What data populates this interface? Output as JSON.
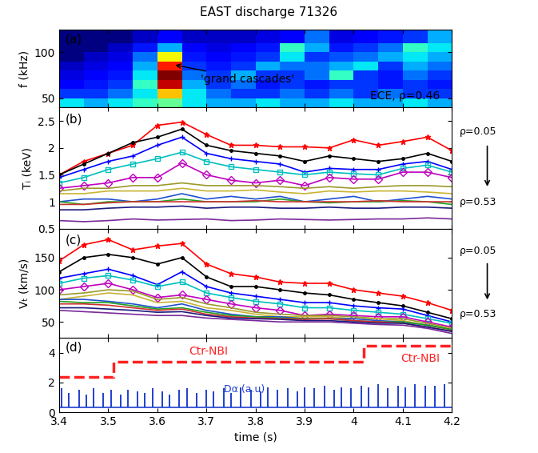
{
  "chart_data": [
    {
      "type": "heatmap",
      "title": "EAST discharge 71326",
      "panel_label": "(a)",
      "y_label": "f (kHz)",
      "arrow_note": "'grand cascades'",
      "note": "ECE, ρ=0.46",
      "x_edges": [
        3.4,
        3.45,
        3.5,
        3.55,
        3.6,
        3.65,
        3.7,
        3.75,
        3.8,
        3.85,
        3.9,
        3.95,
        4.0,
        4.05,
        4.1,
        4.15,
        4.2
      ],
      "y_edges": [
        40,
        50,
        60,
        70,
        80,
        90,
        100,
        110,
        125
      ],
      "cells": [
        [
          0.62,
          0.6,
          0.62,
          0.64,
          0.66,
          0.62,
          0.6,
          0.6,
          0.62,
          0.6,
          0.6,
          0.62,
          0.6,
          0.6,
          0.62,
          0.6
        ],
        [
          0.56,
          0.56,
          0.58,
          0.62,
          0.74,
          0.62,
          0.58,
          0.56,
          0.56,
          0.58,
          0.56,
          0.58,
          0.56,
          0.58,
          0.56,
          0.56
        ],
        [
          0.54,
          0.55,
          0.56,
          0.64,
          0.82,
          0.6,
          0.56,
          0.58,
          0.55,
          0.56,
          0.55,
          0.56,
          0.56,
          0.55,
          0.56,
          0.55
        ],
        [
          0.53,
          0.54,
          0.55,
          0.62,
          0.84,
          0.58,
          0.56,
          0.6,
          0.56,
          0.56,
          0.58,
          0.64,
          0.56,
          0.55,
          0.58,
          0.56
        ],
        [
          0.52,
          0.53,
          0.54,
          0.6,
          0.8,
          0.56,
          0.55,
          0.56,
          0.6,
          0.58,
          0.58,
          0.6,
          0.62,
          0.56,
          0.6,
          0.58
        ],
        [
          0.5,
          0.52,
          0.53,
          0.58,
          0.72,
          0.55,
          0.54,
          0.55,
          0.56,
          0.62,
          0.56,
          0.57,
          0.58,
          0.6,
          0.62,
          0.6
        ],
        [
          0.5,
          0.5,
          0.52,
          0.55,
          0.6,
          0.54,
          0.53,
          0.54,
          0.55,
          0.64,
          0.6,
          0.55,
          0.56,
          0.58,
          0.64,
          0.62
        ],
        [
          0.5,
          0.5,
          0.5,
          0.52,
          0.54,
          0.52,
          0.52,
          0.52,
          0.53,
          0.54,
          0.58,
          0.53,
          0.54,
          0.55,
          0.56,
          0.6
        ]
      ],
      "xlim": [
        3.4,
        4.2
      ],
      "xticks": [
        3.4,
        3.5,
        3.6,
        3.7,
        3.8,
        3.9,
        4,
        4.1,
        4.2
      ],
      "ylim": [
        40,
        125
      ],
      "yticks": [
        50,
        100
      ],
      "tick_labels": "y"
    },
    {
      "type": "line",
      "panel_label": "(b)",
      "y_label": "Tᵢ (keV)",
      "top_note": "ρ=0.05",
      "bottom_note": "ρ=0.53",
      "x": [
        3.4,
        3.45,
        3.5,
        3.55,
        3.6,
        3.65,
        3.7,
        3.75,
        3.8,
        3.85,
        3.9,
        3.95,
        4.0,
        4.05,
        4.1,
        4.15,
        4.2
      ],
      "series": [
        {
          "color": "#ff0000",
          "marker": "star",
          "values": [
            1.5,
            1.75,
            1.9,
            2.05,
            2.42,
            2.48,
            2.25,
            2.05,
            2.05,
            2.02,
            2.02,
            2.0,
            2.15,
            2.05,
            2.12,
            2.2,
            1.95
          ]
        },
        {
          "color": "#000000",
          "marker": "point",
          "values": [
            1.5,
            1.7,
            1.9,
            2.1,
            2.2,
            2.35,
            2.05,
            1.95,
            1.9,
            1.85,
            1.75,
            1.85,
            1.8,
            1.75,
            1.8,
            1.9,
            1.75
          ]
        },
        {
          "color": "#0000ff",
          "marker": "plus",
          "values": [
            1.45,
            1.6,
            1.75,
            1.85,
            2.05,
            2.2,
            1.9,
            1.8,
            1.75,
            1.7,
            1.55,
            1.62,
            1.6,
            1.6,
            1.7,
            1.75,
            1.6
          ]
        },
        {
          "color": "#00bfbf",
          "marker": "square",
          "values": [
            1.35,
            1.45,
            1.6,
            1.7,
            1.8,
            1.92,
            1.75,
            1.65,
            1.6,
            1.55,
            1.5,
            1.55,
            1.52,
            1.5,
            1.62,
            1.68,
            1.55
          ]
        },
        {
          "color": "#bf00bf",
          "marker": "diamond",
          "values": [
            1.25,
            1.3,
            1.35,
            1.45,
            1.45,
            1.72,
            1.5,
            1.4,
            1.35,
            1.4,
            1.3,
            1.45,
            1.42,
            1.42,
            1.55,
            1.55,
            1.45
          ]
        },
        {
          "color": "#9a9a2a",
          "values": [
            1.2,
            1.25,
            1.25,
            1.3,
            1.3,
            1.35,
            1.3,
            1.3,
            1.3,
            1.28,
            1.25,
            1.28,
            1.25,
            1.28,
            1.3,
            1.3,
            1.28
          ]
        },
        {
          "color": "#c8b432",
          "values": [
            1.15,
            1.15,
            1.2,
            1.2,
            1.2,
            1.25,
            1.2,
            1.2,
            1.22,
            1.18,
            1.15,
            1.2,
            1.18,
            1.2,
            1.2,
            1.18,
            1.15
          ]
        },
        {
          "color": "#2050d0",
          "values": [
            1.0,
            1.05,
            1.05,
            1.0,
            1.05,
            1.15,
            1.05,
            1.1,
            1.05,
            1.1,
            1.0,
            1.05,
            1.1,
            1.0,
            1.05,
            1.1,
            1.05
          ]
        },
        {
          "color": "#20a020",
          "values": [
            1.0,
            0.95,
            1.0,
            1.0,
            1.0,
            1.05,
            1.0,
            1.0,
            1.0,
            1.05,
            1.0,
            0.98,
            1.0,
            1.0,
            1.02,
            1.0,
            0.95
          ]
        },
        {
          "color": "#d03030",
          "values": [
            0.95,
            0.95,
            0.98,
            1.0,
            1.0,
            1.0,
            1.0,
            1.0,
            1.02,
            1.0,
            1.0,
            1.0,
            1.0,
            1.02,
            1.0,
            1.0,
            1.0
          ]
        },
        {
          "color": "#1a1a80",
          "values": [
            0.85,
            0.85,
            0.88,
            0.9,
            0.9,
            0.92,
            0.88,
            0.9,
            0.9,
            0.88,
            0.88,
            0.9,
            0.88,
            0.88,
            0.9,
            0.9,
            0.88
          ]
        },
        {
          "color": "#7a2a9a",
          "values": [
            0.65,
            0.63,
            0.65,
            0.68,
            0.66,
            0.67,
            0.68,
            0.65,
            0.66,
            0.68,
            0.67,
            0.66,
            0.67,
            0.68,
            0.68,
            0.7,
            0.68
          ]
        }
      ],
      "xlim": [
        3.4,
        4.2
      ],
      "xticks": [
        3.4,
        3.5,
        3.6,
        3.7,
        3.8,
        3.9,
        4,
        4.1,
        4.2
      ],
      "ylim": [
        0.5,
        2.75
      ],
      "yticks": [
        0.5,
        1,
        1.5,
        2,
        2.5
      ],
      "tick_labels": "y"
    },
    {
      "type": "line",
      "panel_label": "(c)",
      "y_label": "Vₜ (km/s)",
      "top_note": "ρ=0.05",
      "bottom_note": "ρ=0.53",
      "x": [
        3.4,
        3.45,
        3.5,
        3.55,
        3.6,
        3.65,
        3.7,
        3.75,
        3.8,
        3.85,
        3.9,
        3.95,
        4.0,
        4.05,
        4.1,
        4.15,
        4.2
      ],
      "series": [
        {
          "color": "#ff0000",
          "marker": "star",
          "values": [
            145,
            170,
            178,
            162,
            168,
            172,
            140,
            125,
            120,
            112,
            110,
            110,
            100,
            95,
            90,
            80,
            68
          ]
        },
        {
          "color": "#000000",
          "marker": "point",
          "values": [
            128,
            150,
            155,
            150,
            140,
            150,
            120,
            105,
            105,
            100,
            95,
            92,
            85,
            80,
            75,
            65,
            55
          ]
        },
        {
          "color": "#0000ff",
          "marker": "plus",
          "values": [
            118,
            125,
            132,
            122,
            108,
            128,
            105,
            95,
            90,
            85,
            80,
            80,
            75,
            72,
            70,
            60,
            50
          ]
        },
        {
          "color": "#00bfbf",
          "marker": "square",
          "values": [
            110,
            118,
            122,
            115,
            105,
            112,
            95,
            88,
            82,
            78,
            72,
            72,
            68,
            65,
            62,
            55,
            48
          ]
        },
        {
          "color": "#bf00bf",
          "marker": "diamond",
          "values": [
            100,
            105,
            110,
            100,
            88,
            92,
            85,
            78,
            72,
            68,
            60,
            62,
            60,
            58,
            58,
            50,
            42
          ]
        },
        {
          "color": "#9a9a2a",
          "values": [
            92,
            95,
            100,
            98,
            85,
            88,
            78,
            72,
            65,
            62,
            60,
            60,
            58,
            55,
            55,
            48,
            40
          ]
        },
        {
          "color": "#c8b432",
          "values": [
            85,
            90,
            95,
            92,
            80,
            82,
            72,
            68,
            62,
            58,
            58,
            58,
            55,
            55,
            52,
            45,
            40
          ]
        },
        {
          "color": "#2050d0",
          "values": [
            85,
            85,
            82,
            78,
            72,
            78,
            68,
            62,
            58,
            58,
            55,
            55,
            55,
            52,
            50,
            45,
            38
          ]
        },
        {
          "color": "#20a020",
          "values": [
            82,
            80,
            80,
            75,
            70,
            72,
            65,
            60,
            58,
            56,
            55,
            55,
            52,
            50,
            50,
            45,
            38
          ]
        },
        {
          "color": "#d03030",
          "values": [
            78,
            78,
            76,
            72,
            68,
            70,
            62,
            58,
            56,
            55,
            54,
            55,
            52,
            50,
            48,
            42,
            36
          ]
        },
        {
          "color": "#1a1a80",
          "values": [
            72,
            72,
            70,
            68,
            65,
            66,
            60,
            56,
            55,
            54,
            52,
            52,
            50,
            48,
            48,
            42,
            35
          ]
        },
        {
          "color": "#7a2a9a",
          "values": [
            68,
            66,
            64,
            62,
            60,
            60,
            56,
            54,
            52,
            50,
            50,
            50,
            48,
            46,
            45,
            40,
            32
          ]
        }
      ],
      "xlim": [
        3.4,
        4.2
      ],
      "xticks": [
        3.4,
        3.5,
        3.6,
        3.7,
        3.8,
        3.9,
        4,
        4.1,
        4.2
      ],
      "ylim": [
        25,
        195
      ],
      "yticks": [
        50,
        100,
        150
      ],
      "tick_labels": "y"
    },
    {
      "type": "line",
      "panel_label": "(d)",
      "x_label": "time (s)",
      "nbi_notes": [
        "Ctr-NBI",
        "Ctr-NBI"
      ],
      "series": [
        {
          "type": "step",
          "color": "#ff2020",
          "line_style": "dashed",
          "x": [
            3.4,
            3.51,
            3.51,
            4.02,
            4.02,
            4.2
          ],
          "values": [
            2.4,
            2.4,
            3.4,
            3.4,
            4.5,
            4.5
          ]
        },
        {
          "type": "spikes",
          "name": "Dα (a.u)",
          "color": "#1f3fd0",
          "baseline": 0.3,
          "x": [
            3.405,
            3.42,
            3.44,
            3.455,
            3.47,
            3.49,
            3.505,
            3.525,
            3.54,
            3.56,
            3.575,
            3.59,
            3.61,
            3.625,
            3.645,
            3.66,
            3.68,
            3.7,
            3.715,
            3.735,
            3.75,
            3.77,
            3.79,
            3.81,
            3.825,
            3.845,
            3.865,
            3.885,
            3.9,
            3.92,
            3.94,
            3.96,
            3.975,
            3.995,
            4.015,
            4.03,
            4.05,
            4.07,
            4.09,
            4.105,
            4.125,
            4.145,
            4.165,
            4.185
          ],
          "values": [
            1.6,
            1.3,
            1.5,
            1.2,
            1.6,
            1.3,
            1.5,
            1.2,
            1.5,
            1.4,
            1.3,
            1.6,
            1.4,
            1.2,
            1.5,
            1.6,
            1.3,
            1.5,
            1.4,
            1.6,
            1.3,
            1.7,
            1.5,
            1.4,
            1.7,
            1.5,
            1.6,
            1.4,
            1.7,
            1.6,
            1.8,
            1.5,
            1.7,
            1.6,
            1.8,
            1.7,
            1.9,
            1.6,
            1.8,
            1.7,
            1.9,
            1.8,
            1.8,
            1.9
          ]
        }
      ],
      "xlim": [
        3.4,
        4.2
      ],
      "xticks": [
        3.4,
        3.5,
        3.6,
        3.7,
        3.8,
        3.9,
        4,
        4.1,
        4.2
      ],
      "ylim": [
        0,
        5
      ],
      "yticks": [
        0,
        2,
        4
      ]
    }
  ]
}
